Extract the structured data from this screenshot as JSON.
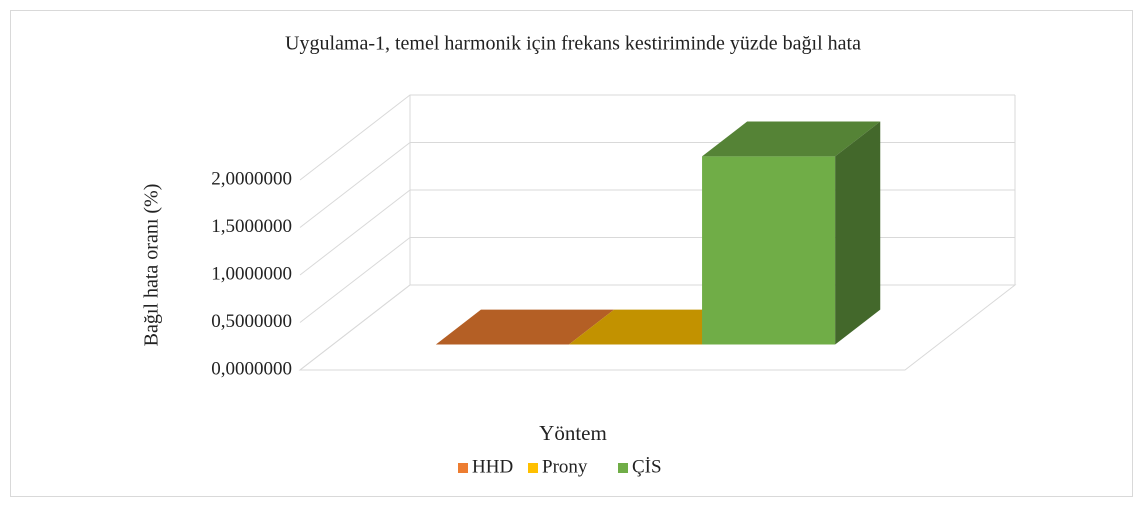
{
  "chart_data": {
    "type": "bar3d",
    "title": "Uygulama-1, temel harmonik için frekans kestiriminde yüzde bağıl hata",
    "x_label": "Yöntem",
    "y_label": "Bağıl hata oranı (%)",
    "categories": [
      null
    ],
    "series": [
      {
        "name": "HHD",
        "color": "#ed7d31",
        "values": [
          0.0001
        ]
      },
      {
        "name": "Prony",
        "color": "#ffc000",
        "values": [
          0.0001
        ]
      },
      {
        "name": "ÇİS",
        "color": "#70ad47",
        "values": [
          1.98
        ]
      }
    ],
    "ylim": [
      0,
      2
    ],
    "yticks": [
      {
        "value": 0,
        "label": "0,0000000"
      },
      {
        "value": 0.5,
        "label": "0,5000000"
      },
      {
        "value": 1,
        "label": "1,0000000"
      },
      {
        "value": 1.5,
        "label": "1,5000000"
      },
      {
        "value": 2,
        "label": "2,0000000"
      }
    ],
    "grid": true,
    "legend": "bottom"
  }
}
